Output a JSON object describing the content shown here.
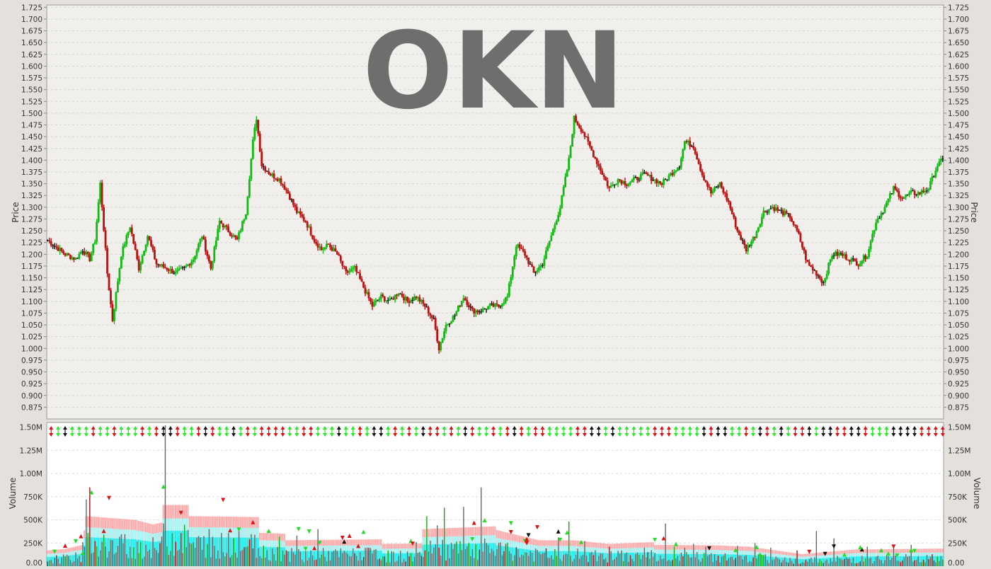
{
  "chart_data": [
    {
      "type": "ohlc",
      "title": "OKN",
      "ylabel": "Price",
      "ylim": [
        0.85,
        1.73
      ],
      "yticks": [
        "1.725",
        "1.700",
        "1.675",
        "1.650",
        "1.625",
        "1.600",
        "1.575",
        "1.550",
        "1.525",
        "1.500",
        "1.475",
        "1.450",
        "1.425",
        "1.400",
        "1.375",
        "1.350",
        "1.325",
        "1.300",
        "1.275",
        "1.250",
        "1.225",
        "1.200",
        "1.175",
        "1.150",
        "1.125",
        "1.100",
        "1.075",
        "1.050",
        "1.025",
        "1.000",
        "0.975",
        "0.950",
        "0.925",
        "0.900",
        "0.875"
      ],
      "grid": true,
      "colors": {
        "up": "#11bb11",
        "down": "#bb1111",
        "unchanged": "#111111"
      },
      "anchors": [
        [
          0,
          1.23
        ],
        [
          10,
          1.2
        ],
        [
          16,
          1.19
        ],
        [
          20,
          1.21
        ],
        [
          24,
          1.19
        ],
        [
          27,
          1.23
        ],
        [
          30,
          1.35
        ],
        [
          34,
          1.16
        ],
        [
          37,
          1.06
        ],
        [
          42,
          1.2
        ],
        [
          47,
          1.26
        ],
        [
          52,
          1.17
        ],
        [
          57,
          1.24
        ],
        [
          62,
          1.18
        ],
        [
          68,
          1.17
        ],
        [
          73,
          1.16
        ],
        [
          78,
          1.17
        ],
        [
          83,
          1.19
        ],
        [
          88,
          1.24
        ],
        [
          93,
          1.17
        ],
        [
          98,
          1.27
        ],
        [
          103,
          1.25
        ],
        [
          108,
          1.23
        ],
        [
          113,
          1.29
        ],
        [
          117,
          1.44
        ],
        [
          119,
          1.49
        ],
        [
          122,
          1.39
        ],
        [
          127,
          1.37
        ],
        [
          132,
          1.36
        ],
        [
          137,
          1.33
        ],
        [
          142,
          1.29
        ],
        [
          147,
          1.27
        ],
        [
          152,
          1.23
        ],
        [
          156,
          1.21
        ],
        [
          160,
          1.22
        ],
        [
          165,
          1.2
        ],
        [
          170,
          1.16
        ],
        [
          175,
          1.17
        ],
        [
          180,
          1.13
        ],
        [
          185,
          1.09
        ],
        [
          190,
          1.11
        ],
        [
          195,
          1.1
        ],
        [
          200,
          1.12
        ],
        [
          205,
          1.1
        ],
        [
          210,
          1.11
        ],
        [
          215,
          1.09
        ],
        [
          220,
          1.06
        ],
        [
          223,
          1.0
        ],
        [
          227,
          1.05
        ],
        [
          232,
          1.07
        ],
        [
          237,
          1.11
        ],
        [
          242,
          1.08
        ],
        [
          247,
          1.08
        ],
        [
          252,
          1.09
        ],
        [
          257,
          1.09
        ],
        [
          262,
          1.11
        ],
        [
          267,
          1.22
        ],
        [
          272,
          1.2
        ],
        [
          277,
          1.16
        ],
        [
          282,
          1.18
        ],
        [
          287,
          1.24
        ],
        [
          292,
          1.3
        ],
        [
          297,
          1.4
        ],
        [
          300,
          1.49
        ],
        [
          305,
          1.46
        ],
        [
          310,
          1.42
        ],
        [
          315,
          1.38
        ],
        [
          320,
          1.34
        ],
        [
          325,
          1.36
        ],
        [
          330,
          1.35
        ],
        [
          335,
          1.36
        ],
        [
          340,
          1.37
        ],
        [
          345,
          1.36
        ],
        [
          350,
          1.35
        ],
        [
          355,
          1.37
        ],
        [
          360,
          1.39
        ],
        [
          363,
          1.44
        ],
        [
          368,
          1.43
        ],
        [
          373,
          1.37
        ],
        [
          378,
          1.33
        ],
        [
          383,
          1.35
        ],
        [
          388,
          1.31
        ],
        [
          393,
          1.25
        ],
        [
          398,
          1.21
        ],
        [
          403,
          1.24
        ],
        [
          408,
          1.29
        ],
        [
          413,
          1.3
        ],
        [
          418,
          1.29
        ],
        [
          423,
          1.28
        ],
        [
          428,
          1.24
        ],
        [
          433,
          1.18
        ],
        [
          438,
          1.16
        ],
        [
          442,
          1.14
        ],
        [
          447,
          1.2
        ],
        [
          452,
          1.2
        ],
        [
          457,
          1.19
        ],
        [
          462,
          1.18
        ],
        [
          467,
          1.2
        ],
        [
          472,
          1.27
        ],
        [
          477,
          1.3
        ],
        [
          482,
          1.34
        ],
        [
          487,
          1.32
        ],
        [
          492,
          1.33
        ],
        [
          497,
          1.33
        ],
        [
          502,
          1.34
        ],
        [
          507,
          1.39
        ],
        [
          510,
          1.4
        ]
      ]
    },
    {
      "type": "bar",
      "ylabel": "Volume",
      "ylim": [
        0,
        1550000
      ],
      "yticks": [
        "1.50M",
        "1.25M",
        "1.00M",
        "750K",
        "500K",
        "250K",
        "0.00"
      ],
      "grid": true,
      "bands": {
        "outer": "#ffaaaa",
        "middle": "#a8f5f5",
        "inner": "#22eeee"
      },
      "volume_colors": {
        "normal": "#666666",
        "up": "#11aa11",
        "down": "#aa1111"
      },
      "band_anchors": [
        [
          0,
          170
        ],
        [
          10,
          185
        ],
        [
          20,
          230
        ],
        [
          22,
          540
        ],
        [
          50,
          500
        ],
        [
          60,
          450
        ],
        [
          65,
          470
        ],
        [
          66,
          660
        ],
        [
          80,
          660
        ],
        [
          81,
          540
        ],
        [
          120,
          530
        ],
        [
          121,
          360
        ],
        [
          135,
          350
        ],
        [
          136,
          280
        ],
        [
          190,
          290
        ],
        [
          191,
          240
        ],
        [
          213,
          245
        ],
        [
          214,
          400
        ],
        [
          255,
          430
        ],
        [
          256,
          390
        ],
        [
          280,
          280
        ],
        [
          300,
          280
        ],
        [
          320,
          240
        ],
        [
          345,
          260
        ],
        [
          346,
          230
        ],
        [
          380,
          225
        ],
        [
          400,
          210
        ],
        [
          430,
          130
        ],
        [
          460,
          180
        ],
        [
          510,
          190
        ]
      ],
      "spikes": [
        [
          20,
          260
        ],
        [
          22,
          720
        ],
        [
          24,
          850
        ],
        [
          30,
          170
        ],
        [
          37,
          280
        ],
        [
          47,
          210
        ],
        [
          66,
          460
        ],
        [
          67,
          1520
        ],
        [
          92,
          400
        ],
        [
          109,
          380
        ],
        [
          132,
          320
        ],
        [
          142,
          330
        ],
        [
          154,
          400
        ],
        [
          182,
          200
        ],
        [
          210,
          260
        ],
        [
          216,
          540
        ],
        [
          222,
          440
        ],
        [
          226,
          630
        ],
        [
          237,
          640
        ],
        [
          247,
          850
        ],
        [
          291,
          310
        ],
        [
          297,
          480
        ],
        [
          306,
          270
        ],
        [
          320,
          210
        ],
        [
          340,
          200
        ],
        [
          352,
          460
        ],
        [
          357,
          210
        ],
        [
          363,
          200
        ],
        [
          368,
          240
        ],
        [
          375,
          210
        ],
        [
          393,
          220
        ],
        [
          403,
          250
        ],
        [
          412,
          200
        ],
        [
          427,
          170
        ],
        [
          438,
          380
        ],
        [
          448,
          300
        ],
        [
          467,
          210
        ],
        [
          482,
          200
        ],
        [
          492,
          230
        ]
      ]
    }
  ]
}
